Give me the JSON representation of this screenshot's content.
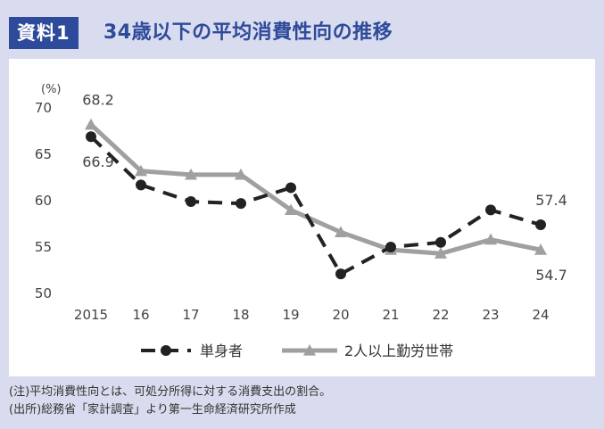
{
  "header": {
    "badge": "資料1",
    "title": "34歳以下の平均消費性向の推移"
  },
  "notes": [
    "(注)平均消費性向とは、可処分所得に対する消費支出の割合。",
    "(出所)総務省「家計調査」より第一生命経済研究所作成"
  ],
  "chart_data": {
    "type": "line",
    "unit_label": "(%)",
    "categories": [
      "2015",
      "16",
      "17",
      "18",
      "19",
      "20",
      "21",
      "22",
      "23",
      "24"
    ],
    "ylim": [
      50,
      70
    ],
    "yticks": [
      50,
      55,
      60,
      65,
      70
    ],
    "grid": false,
    "legend": "bottom",
    "series": [
      {
        "name": "単身者",
        "color": "#222222",
        "dash": true,
        "marker": "circle",
        "values": [
          66.9,
          61.7,
          59.9,
          59.7,
          61.4,
          52.1,
          55.0,
          55.5,
          59.0,
          57.4
        ]
      },
      {
        "name": "2人以上勤労世帯",
        "color": "#a0a0a0",
        "dash": false,
        "marker": "triangle",
        "values": [
          68.2,
          63.2,
          62.8,
          62.8,
          59.0,
          56.6,
          54.7,
          54.3,
          55.8,
          54.7
        ]
      }
    ],
    "annotations": [
      {
        "text": "68.2",
        "series": 1,
        "index": 0,
        "pos": "above"
      },
      {
        "text": "66.9",
        "series": 0,
        "index": 0,
        "pos": "below"
      },
      {
        "text": "57.4",
        "series": 0,
        "index": 9,
        "pos": "above"
      },
      {
        "text": "54.7",
        "series": 1,
        "index": 9,
        "pos": "below"
      }
    ]
  }
}
